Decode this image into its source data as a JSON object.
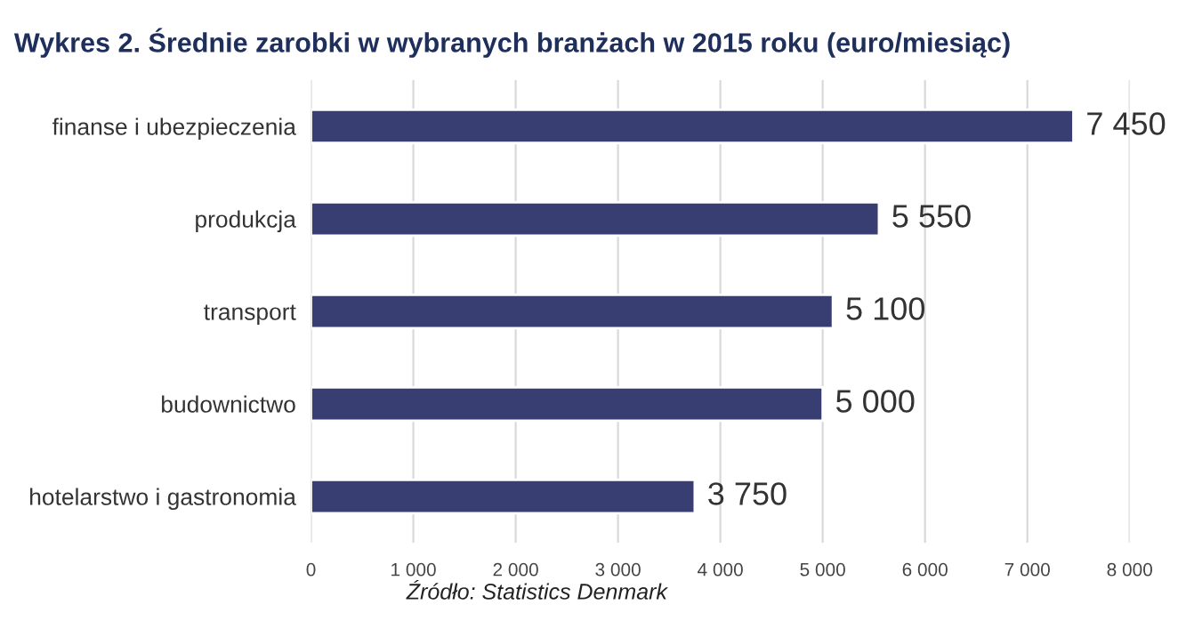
{
  "chart_data": {
    "type": "bar",
    "orientation": "horizontal",
    "title": "Wykres 2. Średnie zarobki w wybranych branżach w 2015 roku (euro/miesiąc)",
    "categories": [
      "finanse i ubezpieczenia",
      "produkcja",
      "transport",
      "budownictwo",
      "hotelarstwo i gastronomia"
    ],
    "values": [
      7450,
      5550,
      5100,
      5000,
      3750
    ],
    "value_labels": [
      "7 450",
      "5 550",
      "5 100",
      "5 000",
      "3 750"
    ],
    "color": "#383d72",
    "xlim": [
      0,
      8000
    ],
    "xticks": [
      0,
      {
        "value": 1000,
        "label": "1 000"
      },
      {
        "value": 2000,
        "label": "2 000"
      },
      {
        "value": 3000,
        "label": "3 000"
      },
      {
        "value": 4000,
        "label": "4 000"
      },
      {
        "value": 5000,
        "label": "5 000"
      },
      {
        "value": 6000,
        "label": "6 000"
      },
      {
        "value": 7000,
        "label": "7 000"
      },
      {
        "value": 8000,
        "label": "8 000"
      }
    ],
    "grid": "x",
    "legend": false,
    "annotations": [
      "Źródło: Statistics Denmark"
    ]
  }
}
